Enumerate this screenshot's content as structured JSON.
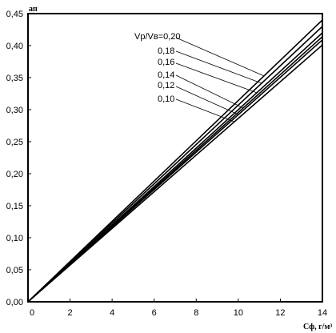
{
  "chart_data": {
    "type": "line",
    "xlabel": "Сф, г/м³",
    "ylabel": "aп",
    "xlim": [
      0,
      14
    ],
    "ylim": [
      0,
      0.45
    ],
    "x_ticks": [
      "0",
      "2",
      "4",
      "6",
      "8",
      "10",
      "12",
      "14"
    ],
    "y_ticks": [
      "0,00",
      "0,05",
      "0,10",
      "0,15",
      "0,20",
      "0,25",
      "0,30",
      "0,35",
      "0,40",
      "0,45"
    ],
    "grid": false,
    "legend_title": "Vр/Vв",
    "series": [
      {
        "name": "0,20",
        "x": [
          0,
          14
        ],
        "y": [
          0,
          0.44
        ]
      },
      {
        "name": "0,18",
        "x": [
          0,
          14
        ],
        "y": [
          0,
          0.43
        ]
      },
      {
        "name": "0,16",
        "x": [
          0,
          14
        ],
        "y": [
          0,
          0.42
        ]
      },
      {
        "name": "0,14",
        "x": [
          0,
          14
        ],
        "y": [
          0,
          0.414
        ]
      },
      {
        "name": "0,12",
        "x": [
          0,
          14
        ],
        "y": [
          0,
          0.409
        ]
      },
      {
        "name": "0,10",
        "x": [
          0,
          14
        ],
        "y": [
          0,
          0.401
        ]
      }
    ],
    "legend_labels": [
      "Vр/Vв=0,20",
      "0,18",
      "0,16",
      "0,14",
      "0,12",
      "0,10"
    ]
  }
}
